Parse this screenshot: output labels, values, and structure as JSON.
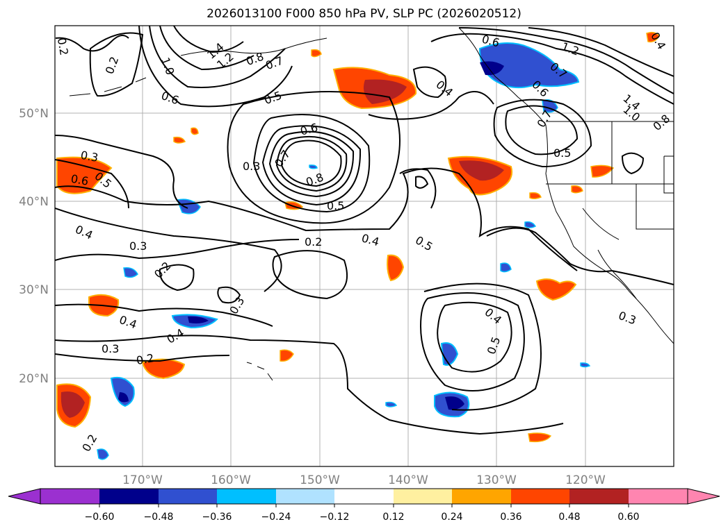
{
  "title": "2026013100 F000 850 hPa PV, SLP PC (2026020512)",
  "latitudes": [
    {
      "label": "50°N"
    },
    {
      "label": "40°N"
    },
    {
      "label": "30°N"
    },
    {
      "label": "20°N"
    }
  ],
  "longitudes": [
    {
      "label": "170°W"
    },
    {
      "label": "160°W"
    },
    {
      "label": "150°W"
    },
    {
      "label": "140°W"
    },
    {
      "label": "130°W"
    },
    {
      "label": "120°W"
    }
  ],
  "contour_labels": [
    "0.2",
    "0.2",
    "1.0",
    "1.4",
    "1.2",
    "0.8",
    "0.7",
    "0.6",
    "0.5",
    "0.6",
    "1.2",
    "1.4",
    "1.0",
    "0.8",
    "0.7",
    "0.6",
    "0.7",
    "0.5",
    "0.4",
    "0.3",
    "0.6",
    "0.5",
    "0.6",
    "0.7",
    "0.3",
    "0.8",
    "0.5",
    "0.4",
    "0.3",
    "0.2",
    "0.4",
    "0.5",
    "0.2",
    "0.3",
    "0.4",
    "0.4",
    "0.3",
    "0.2",
    "0.4",
    "0.5",
    "0.3",
    "0.2",
    "0.4"
  ],
  "colorbar": {
    "ticks": [
      "−0.60",
      "−0.48",
      "−0.36",
      "−0.24",
      "−0.12",
      "0.12",
      "0.24",
      "0.36",
      "0.48",
      "0.60"
    ],
    "colors": [
      "#9b30d0",
      "#00008b",
      "#3050d0",
      "#00bfff",
      "#b0e2ff",
      "#ffffff",
      "#fff0a0",
      "#ffa500",
      "#ff4500",
      "#b22222",
      "#ff85b0"
    ]
  }
}
